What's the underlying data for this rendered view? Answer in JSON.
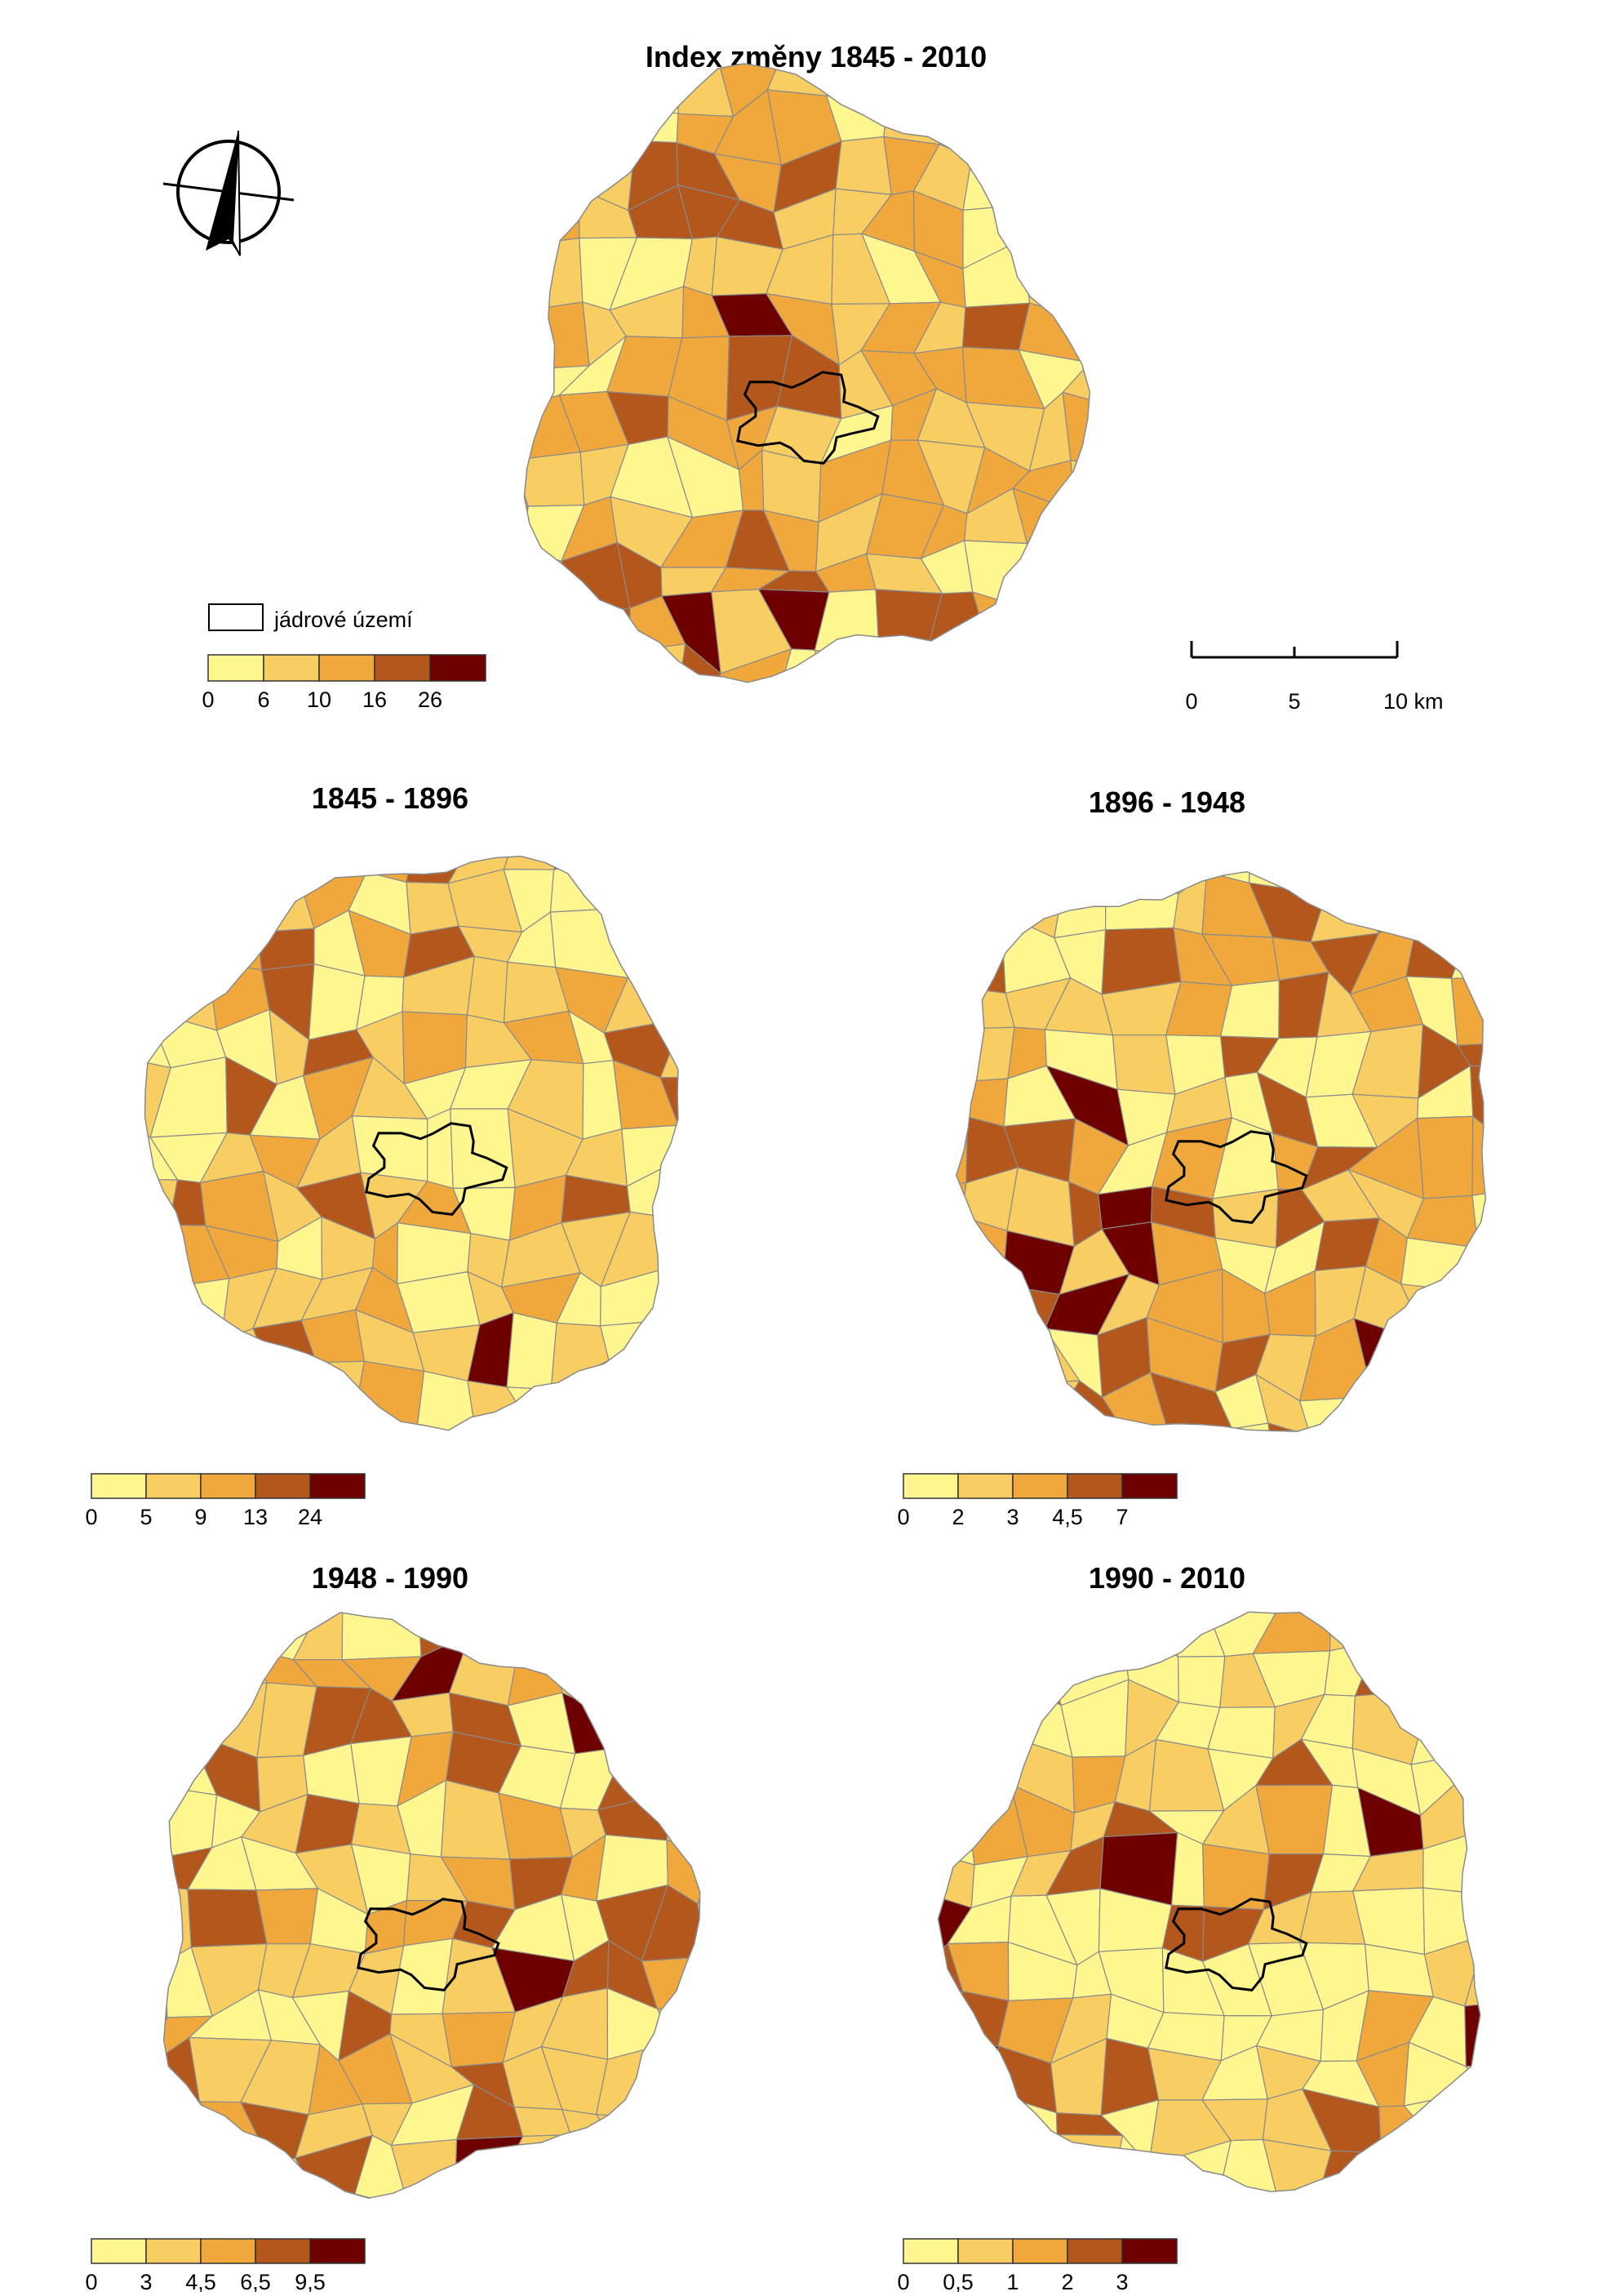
{
  "main_map": {
    "title": "Index změny 1845 - 2010",
    "legend": {
      "breaks": [
        "0",
        "6",
        "10",
        "16",
        "26"
      ]
    }
  },
  "core_area_label": "jádrové území",
  "scale_bar": {
    "labels": [
      "0",
      "5",
      "10 km"
    ]
  },
  "palette": [
    "#fff68f",
    "#f8cd62",
    "#f0a83c",
    "#b4571c",
    "#6e0000"
  ],
  "maps": [
    {
      "title": "1845 - 1896",
      "legend": {
        "breaks": [
          "0",
          "5",
          "9",
          "13",
          "24"
        ]
      }
    },
    {
      "title": "1896 - 1948",
      "legend": {
        "breaks": [
          "0",
          "2",
          "3",
          "4,5",
          "7"
        ]
      }
    },
    {
      "title": "1948 - 1990",
      "legend": {
        "breaks": [
          "0",
          "3",
          "4,5",
          "6,5",
          "9,5"
        ]
      }
    },
    {
      "title": "1990 - 2010",
      "legend": {
        "breaks": [
          "0",
          "0,5",
          "1",
          "2",
          "3"
        ]
      }
    }
  ]
}
